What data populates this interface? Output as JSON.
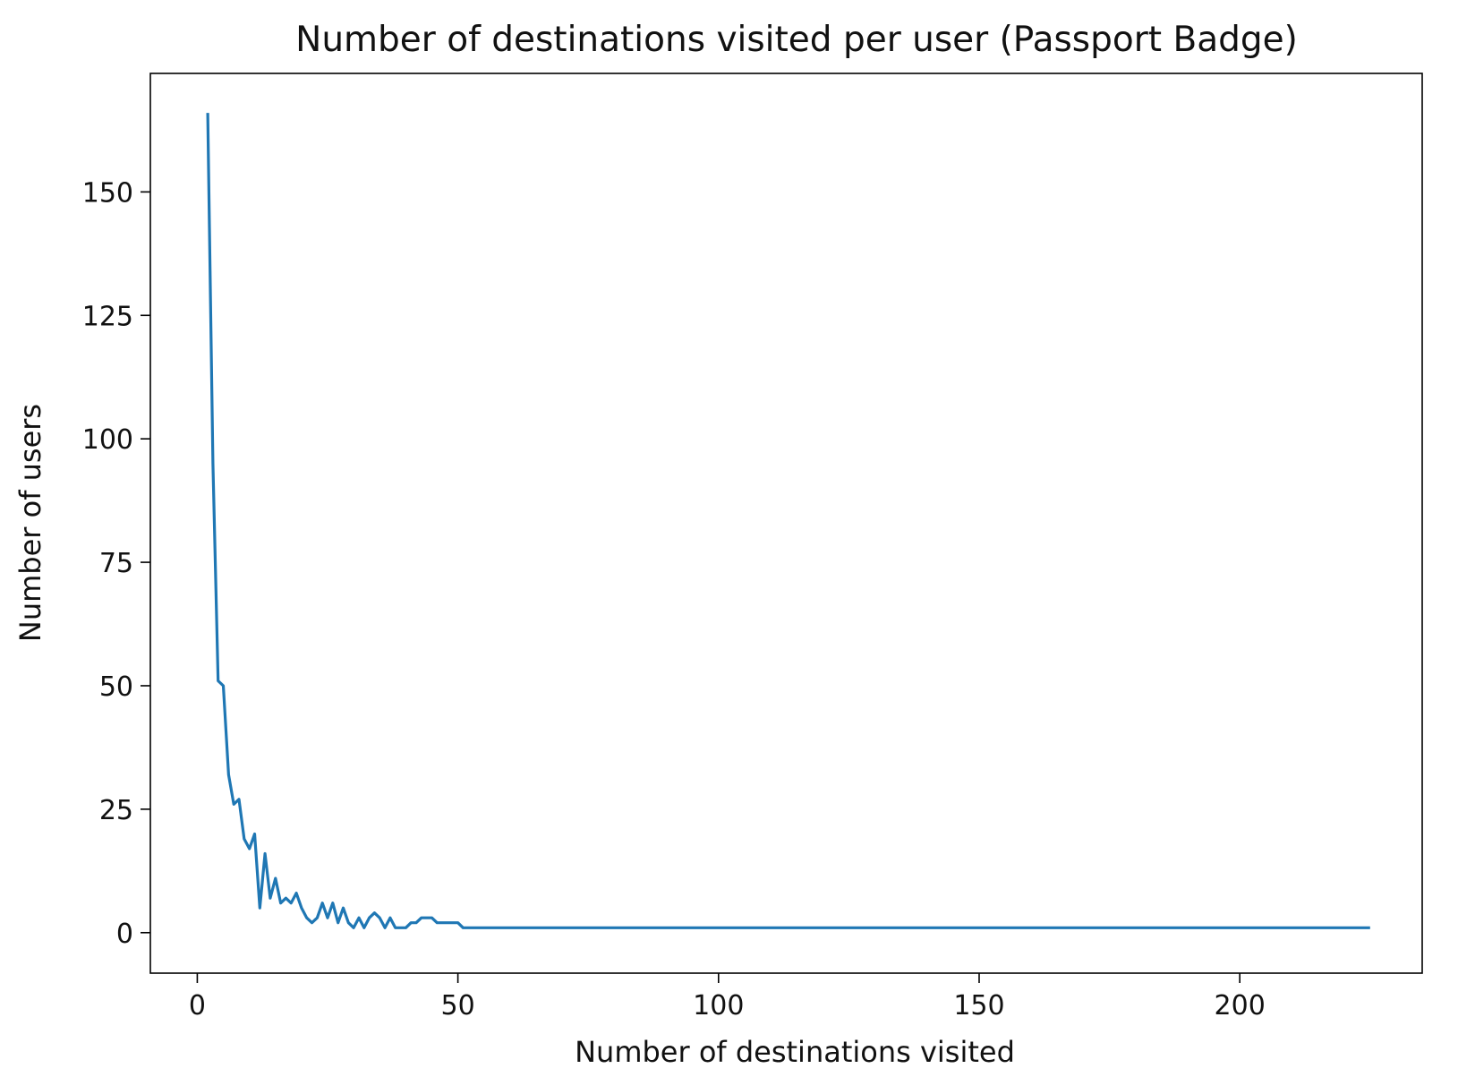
{
  "chart_data": {
    "type": "line",
    "title": "Number of destinations visited per user (Passport Badge)",
    "xlabel": "Number of destinations visited",
    "ylabel": "Number of users",
    "xlim": [
      -9,
      235
    ],
    "ylim": [
      -8.2,
      174
    ],
    "xticks": [
      0,
      50,
      100,
      150,
      200
    ],
    "yticks": [
      0,
      25,
      50,
      75,
      100,
      125,
      150
    ],
    "grid": false,
    "legend": "none",
    "series_color": "#1f77b4",
    "series": [
      {
        "x": [
          2,
          3,
          4,
          5,
          6,
          7,
          8,
          9,
          10,
          11,
          12,
          13,
          14,
          15,
          16,
          17,
          18,
          19,
          20,
          21,
          22,
          23,
          24,
          25,
          26,
          27,
          28,
          29,
          30,
          31,
          32,
          33,
          34,
          35,
          36,
          37,
          38,
          39,
          40,
          41,
          42,
          43,
          44,
          45,
          46,
          47,
          48,
          49,
          50,
          51,
          225
        ],
        "y": [
          166,
          95,
          51,
          50,
          32,
          26,
          27,
          19,
          17,
          20,
          5,
          16,
          7,
          11,
          6,
          7,
          6,
          8,
          5,
          3,
          2,
          3,
          6,
          3,
          6,
          2,
          5,
          2,
          1,
          3,
          1,
          3,
          4,
          3,
          1,
          3,
          1,
          1,
          1,
          2,
          2,
          3,
          3,
          3,
          2,
          2,
          2,
          2,
          2,
          1,
          1
        ]
      }
    ]
  }
}
